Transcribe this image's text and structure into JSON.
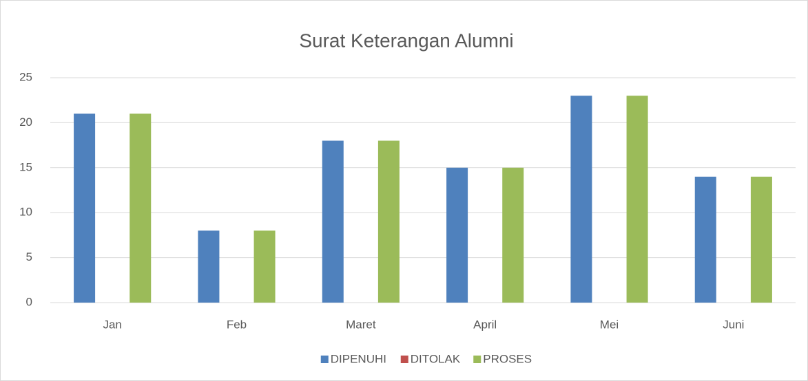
{
  "chart_data": {
    "type": "bar",
    "title": "Surat Keterangan Alumni",
    "categories": [
      "Jan",
      "Feb",
      "Maret",
      "April",
      "Mei",
      "Juni"
    ],
    "series": [
      {
        "name": "DIPENUHI",
        "color": "#4f81bd",
        "values": [
          21,
          8,
          18,
          15,
          23,
          14
        ]
      },
      {
        "name": "DITOLAK",
        "color": "#c0504d",
        "values": [
          0,
          0,
          0,
          0,
          0,
          0
        ]
      },
      {
        "name": "PROSES",
        "color": "#9bbb59",
        "values": [
          21,
          8,
          18,
          15,
          23,
          14
        ]
      }
    ],
    "ylim": [
      0,
      25
    ],
    "yticks": [
      0,
      5,
      10,
      15,
      20,
      25
    ],
    "grid": true,
    "legend": "bottom"
  }
}
